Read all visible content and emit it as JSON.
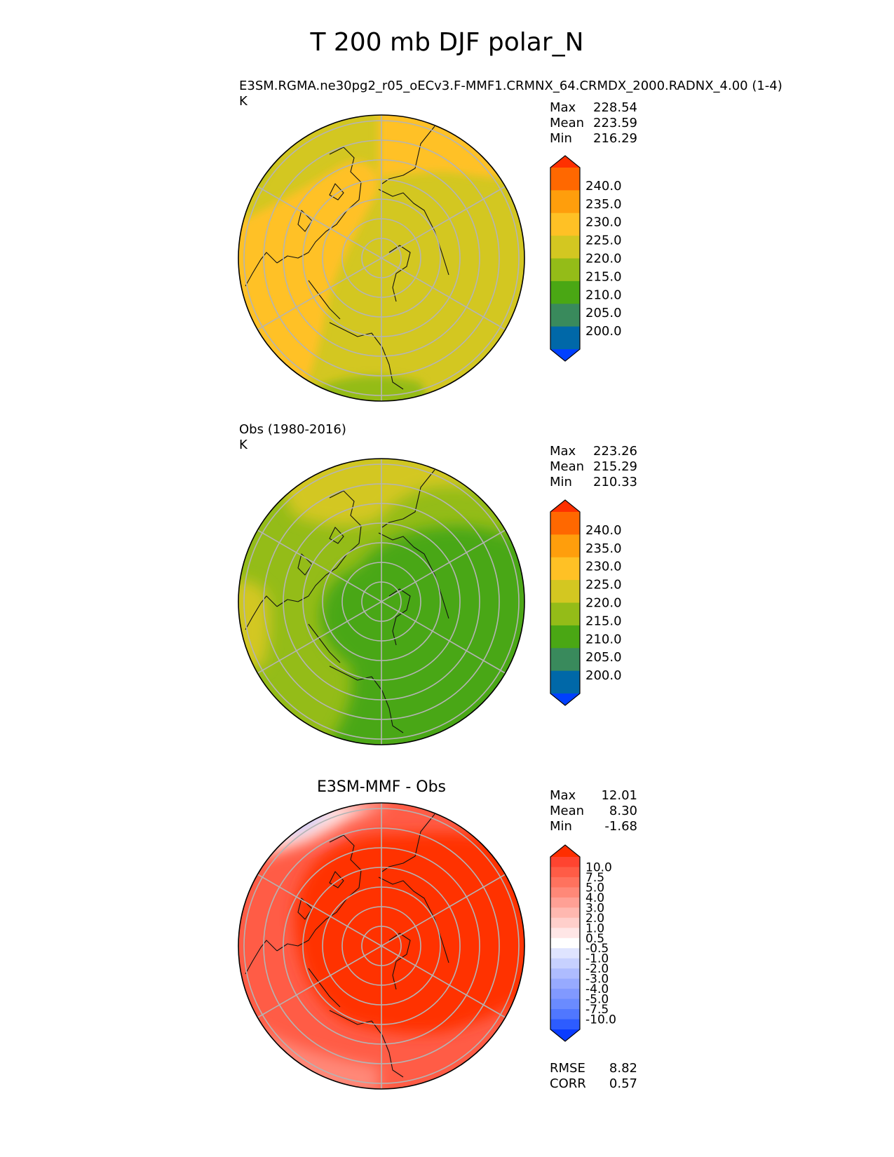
{
  "title": "T 200 mb DJF polar_N",
  "colors": {
    "abs_scale": [
      "#0040ff",
      "#0068a8",
      "#398a5c",
      "#4aa714",
      "#94bc18",
      "#d3c721",
      "#ffc125",
      "#ff9e0c",
      "#ff6800",
      "#ff3000"
    ],
    "diff_scale": [
      "#0a3cff",
      "#2d5cff",
      "#5077ff",
      "#6a8bff",
      "#8199ff",
      "#97aaff",
      "#aebcff",
      "#c7d1ff",
      "#dfe4ff",
      "#ffffff",
      "#ffe6e6",
      "#ffcfcb",
      "#ffb8b0",
      "#ffa095",
      "#ff8878",
      "#ff725e",
      "#ff5c46",
      "#ff4430",
      "#ff2e00"
    ]
  },
  "chart_data": [
    {
      "type": "heatmap",
      "projection": "north polar stereographic",
      "subtitle": "E3SM.RGMA.ne30pg2_r05_oECv3.F-MMF1.CRMNX_64.CRMDX_2000.RADNX_4.00 (1-4)",
      "units": "K",
      "stats": [
        {
          "label": "Max",
          "value": "228.54"
        },
        {
          "label": "Mean",
          "value": "223.59"
        },
        {
          "label": "Min",
          "value": "216.29"
        }
      ],
      "colorbar": {
        "ticks": [
          "240.0",
          "235.0",
          "230.0",
          "225.0",
          "220.0",
          "215.0",
          "210.0",
          "205.0",
          "200.0"
        ],
        "extend": "both"
      },
      "field_regions": [
        {
          "description": "background",
          "value_range": [
            220,
            225
          ]
        },
        {
          "description": "Europe-Atlantic band",
          "value_range": [
            225,
            230
          ]
        },
        {
          "description": "North Pacific",
          "value_range": [
            225,
            230
          ]
        },
        {
          "description": "Canada/Greenland edge",
          "value_range": [
            215,
            220
          ]
        },
        {
          "description": "Siberian edge",
          "value_range": [
            215,
            220
          ]
        }
      ]
    },
    {
      "type": "heatmap",
      "projection": "north polar stereographic",
      "subtitle": "Obs (1980-2016)",
      "units": "K",
      "stats": [
        {
          "label": "Max",
          "value": "223.26"
        },
        {
          "label": "Mean",
          "value": "215.29"
        },
        {
          "label": "Min",
          "value": "210.33"
        }
      ],
      "colorbar": {
        "ticks": [
          "240.0",
          "235.0",
          "230.0",
          "225.0",
          "220.0",
          "215.0",
          "210.0",
          "205.0",
          "200.0"
        ],
        "extend": "both"
      },
      "field_regions": [
        {
          "description": "background",
          "value_range": [
            215,
            220
          ]
        },
        {
          "description": "polar vortex core",
          "value_range": [
            210,
            215
          ]
        },
        {
          "description": "North Pacific",
          "value_range": [
            220,
            225
          ]
        },
        {
          "description": "Europe edge",
          "value_range": [
            220,
            225
          ]
        }
      ]
    },
    {
      "type": "heatmap",
      "projection": "north polar stereographic",
      "title": "E3SM-MMF - Obs",
      "stats": [
        {
          "label": "Max",
          "value": "12.01"
        },
        {
          "label": "Mean",
          "value": "8.30"
        },
        {
          "label": "Min",
          "value": "-1.68"
        }
      ],
      "colorbar": {
        "ticks": [
          "10.0",
          "7.5",
          "5.0",
          "4.0",
          "3.0",
          "2.0",
          "1.0",
          "0.5",
          "-0.5",
          "-1.0",
          "-2.0",
          "-3.0",
          "-4.0",
          "-5.0",
          "-7.5",
          "-10.0"
        ],
        "extend": "both"
      },
      "metrics": [
        {
          "label": "RMSE",
          "value": "8.82"
        },
        {
          "label": "CORR",
          "value": "0.57"
        }
      ],
      "field_regions": [
        {
          "description": "background",
          "value_range": [
            7.5,
            10.0
          ]
        },
        {
          "description": "Arctic and northern Pacific core",
          "value_range": [
            10.0,
            12.01
          ]
        },
        {
          "description": "North Pacific edge",
          "value_range": [
            -1.68,
            3.0
          ]
        }
      ]
    }
  ]
}
